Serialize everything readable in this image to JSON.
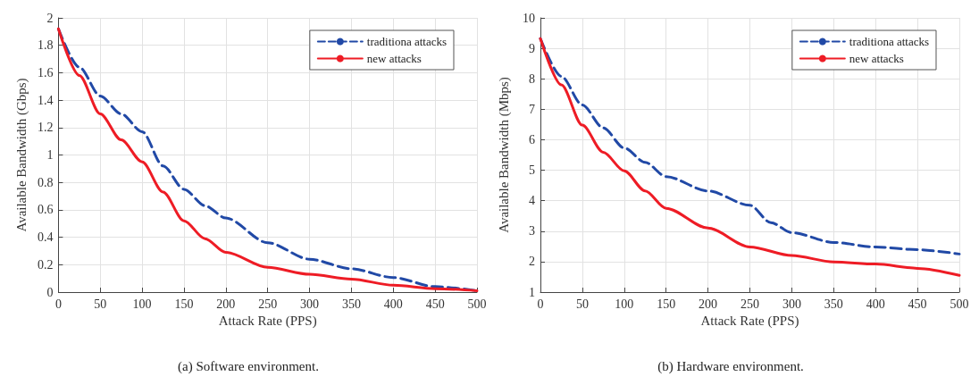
{
  "chart_data": [
    {
      "type": "line",
      "xlabel": "Attack Rate (PPS)",
      "ylabel": "Available Bandwidth (Gbps)",
      "annotations": [
        "(a) Software environment."
      ],
      "xlim": [
        0,
        500
      ],
      "xticks": [
        0,
        50,
        100,
        150,
        200,
        250,
        300,
        350,
        400,
        450,
        500
      ],
      "ylim": [
        0,
        2
      ],
      "yticks": [
        0,
        0.2,
        0.4,
        0.6,
        0.8,
        1,
        1.2,
        1.4,
        1.6,
        1.8,
        2
      ],
      "grid": true,
      "legend": "top right",
      "marker": "none",
      "x": [
        0,
        25,
        50,
        75,
        100,
        125,
        150,
        175,
        200,
        250,
        300,
        350,
        400,
        450,
        500
      ],
      "series": [
        {
          "name": "traditiona attacks",
          "color": "#2149a6",
          "line_style": "dashed",
          "values": [
            1.92,
            1.64,
            1.43,
            1.3,
            1.17,
            0.92,
            0.75,
            0.63,
            0.54,
            0.36,
            0.24,
            0.17,
            0.106,
            0.04,
            0.01
          ]
        },
        {
          "name": "new attacks",
          "color": "#ee1c25",
          "line_style": "solid",
          "values": [
            1.92,
            1.58,
            1.3,
            1.11,
            0.95,
            0.73,
            0.52,
            0.39,
            0.29,
            0.18,
            0.13,
            0.095,
            0.05,
            0.025,
            0.01
          ]
        }
      ]
    },
    {
      "type": "line",
      "xlabel": "Attack Rate (PPS)",
      "ylabel": "Available Bandwidth (Mbps)",
      "annotations": [
        "(b) Hardware environment."
      ],
      "xlim": [
        0,
        500
      ],
      "xticks": [
        0,
        50,
        100,
        150,
        200,
        250,
        300,
        350,
        400,
        450,
        500
      ],
      "ylim": [
        1,
        10
      ],
      "yticks": [
        1,
        2,
        3,
        4,
        5,
        6,
        7,
        8,
        9,
        10
      ],
      "grid": true,
      "legend": "top right",
      "marker": "none",
      "x": [
        0,
        25,
        50,
        75,
        100,
        125,
        150,
        200,
        250,
        275,
        300,
        350,
        400,
        450,
        500
      ],
      "series": [
        {
          "name": "traditiona attacks",
          "color": "#2149a6",
          "line_style": "dashed",
          "values": [
            9.32,
            8.08,
            7.14,
            6.39,
            5.73,
            5.26,
            4.79,
            4.32,
            3.85,
            3.28,
            2.95,
            2.63,
            2.48,
            2.39,
            2.25
          ]
        },
        {
          "name": "new attacks",
          "color": "#ee1c25",
          "line_style": "solid",
          "x": [
            0,
            25,
            50,
            75,
            100,
            125,
            150,
            200,
            250,
            300,
            350,
            400,
            450,
            500
          ],
          "values": [
            9.32,
            7.8,
            6.48,
            5.59,
            4.98,
            4.32,
            3.75,
            3.1,
            2.48,
            2.2,
            1.99,
            1.92,
            1.78,
            1.55
          ]
        }
      ]
    }
  ]
}
